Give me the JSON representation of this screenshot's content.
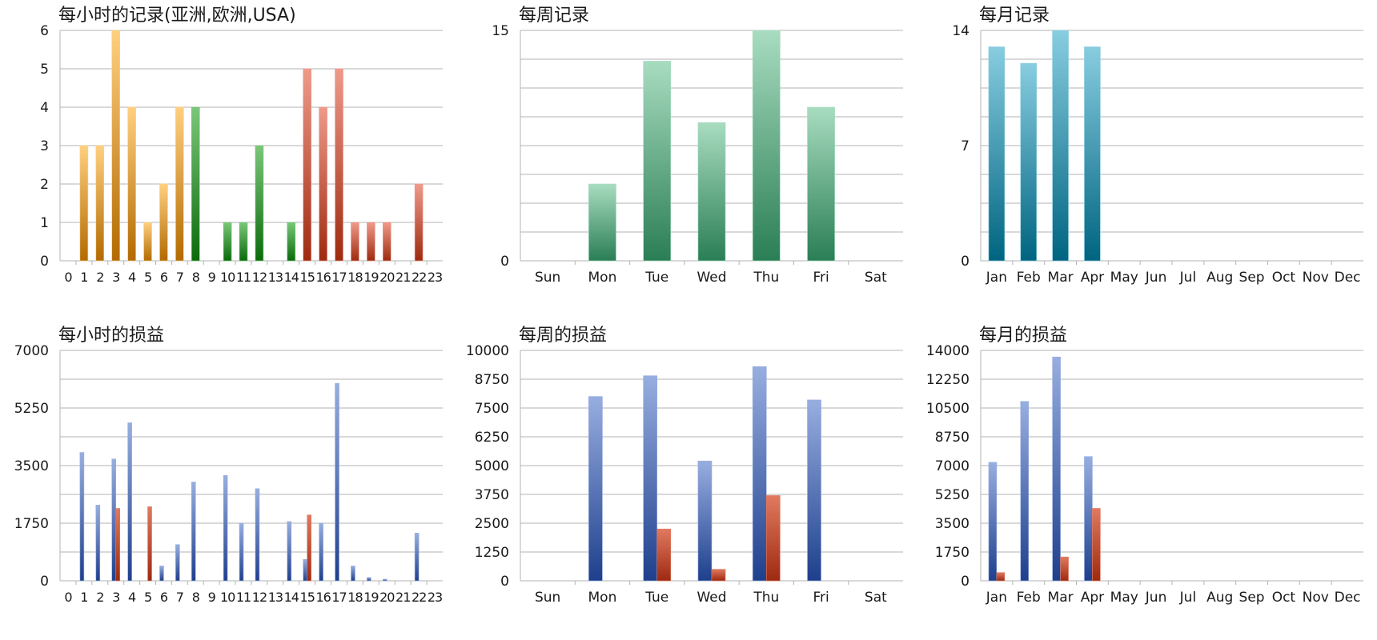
{
  "chart_data": [
    {
      "id": "hourly-records",
      "type": "bar",
      "title": "每小时的记录(亚洲,欧洲,USA)",
      "xlabel": "",
      "ylabel": "",
      "categories": [
        "0",
        "1",
        "2",
        "3",
        "4",
        "5",
        "6",
        "7",
        "8",
        "9",
        "10",
        "11",
        "12",
        "13",
        "14",
        "15",
        "16",
        "17",
        "18",
        "19",
        "20",
        "21",
        "22",
        "23"
      ],
      "ylim": [
        0,
        6
      ],
      "yticks": [
        0,
        1,
        2,
        3,
        4,
        5,
        6
      ],
      "grid": true,
      "stacked": true,
      "series": [
        {
          "color_top": "#ffd080",
          "color_bottom": "#b36a00",
          "values": [
            0,
            3,
            3,
            6,
            4,
            1,
            2,
            4,
            0,
            0,
            0,
            0,
            0,
            0,
            0,
            0,
            0,
            0,
            0,
            0,
            0,
            0,
            0,
            0
          ]
        },
        {
          "color_top": "#7ac77a",
          "color_bottom": "#0a6a0a",
          "values": [
            0,
            0,
            0,
            0,
            0,
            0,
            0,
            0,
            4,
            0,
            1,
            1,
            3,
            0,
            1,
            0,
            0,
            0,
            0,
            0,
            0,
            0,
            0,
            0
          ]
        },
        {
          "color_top": "#ef9a8a",
          "color_bottom": "#9e2a10",
          "values": [
            0,
            0,
            0,
            0,
            0,
            0,
            0,
            0,
            0,
            0,
            0,
            0,
            0,
            0,
            0,
            5,
            4,
            5,
            1,
            1,
            1,
            0,
            2,
            0
          ]
        }
      ]
    },
    {
      "id": "weekly-records",
      "type": "bar",
      "title": "每周记录",
      "xlabel": "",
      "ylabel": "",
      "categories": [
        "Sun",
        "Mon",
        "Tue",
        "Wed",
        "Thu",
        "Fri",
        "Sat"
      ],
      "ylim": [
        0,
        15
      ],
      "yticks": [
        0,
        15
      ],
      "gridlines": [
        1.875,
        3.75,
        5.625,
        7.5,
        9.375,
        11.25,
        13.125,
        15
      ],
      "grid": true,
      "series": [
        {
          "color_top": "#a8dcc0",
          "color_bottom": "#2a7e55",
          "values": [
            0,
            5,
            13,
            9,
            15,
            10,
            0
          ]
        }
      ]
    },
    {
      "id": "monthly-records",
      "type": "bar",
      "title": "每月记录",
      "xlabel": "",
      "ylabel": "",
      "categories": [
        "Jan",
        "Feb",
        "Mar",
        "Apr",
        "May",
        "Jun",
        "Jul",
        "Aug",
        "Sep",
        "Oct",
        "Nov",
        "Dec"
      ],
      "ylim": [
        0,
        14
      ],
      "yticks": [
        0,
        7,
        14
      ],
      "gridlines": [
        1.75,
        3.5,
        5.25,
        7,
        8.75,
        10.5,
        12.25,
        14
      ],
      "grid": true,
      "series": [
        {
          "color_top": "#88cde0",
          "color_bottom": "#006480",
          "values": [
            13,
            12,
            14,
            13,
            0,
            0,
            0,
            0,
            0,
            0,
            0,
            0
          ]
        }
      ]
    },
    {
      "id": "hourly-profit-loss",
      "type": "bar",
      "title": "每小时的损益",
      "xlabel": "",
      "ylabel": "",
      "categories": [
        "0",
        "1",
        "2",
        "3",
        "4",
        "5",
        "6",
        "7",
        "8",
        "9",
        "10",
        "11",
        "12",
        "13",
        "14",
        "15",
        "16",
        "17",
        "18",
        "19",
        "20",
        "21",
        "22",
        "23"
      ],
      "ylim": [
        0,
        7000
      ],
      "yticks": [
        0,
        1750,
        3500,
        5250,
        7000
      ],
      "gridlines": [
        875,
        1750,
        2625,
        3500,
        4375,
        5250,
        6125,
        7000
      ],
      "grid": true,
      "series": [
        {
          "color_top": "#98aee0",
          "color_bottom": "#1e3f8c",
          "values": [
            0,
            3900,
            2300,
            3700,
            4800,
            0,
            450,
            1100,
            3000,
            0,
            3200,
            1750,
            2800,
            0,
            1800,
            650,
            1750,
            6000,
            450,
            100,
            50,
            0,
            1450,
            0
          ]
        },
        {
          "color_top": "#e07a60",
          "color_bottom": "#9e2a10",
          "values": [
            0,
            0,
            0,
            2200,
            0,
            2250,
            0,
            0,
            0,
            0,
            0,
            0,
            0,
            0,
            0,
            2000,
            0,
            0,
            0,
            0,
            0,
            0,
            0,
            0
          ]
        }
      ]
    },
    {
      "id": "weekly-profit-loss",
      "type": "bar",
      "title": "每周的损益",
      "xlabel": "",
      "ylabel": "",
      "categories": [
        "Sun",
        "Mon",
        "Tue",
        "Wed",
        "Thu",
        "Fri",
        "Sat"
      ],
      "ylim": [
        0,
        10000
      ],
      "yticks": [
        0,
        1250,
        2500,
        3750,
        5000,
        6250,
        7500,
        8750,
        10000
      ],
      "grid": true,
      "series": [
        {
          "color_top": "#98aee0",
          "color_bottom": "#1e3f8c",
          "values": [
            0,
            8000,
            8900,
            5200,
            9300,
            7850,
            0
          ]
        },
        {
          "color_top": "#e07a60",
          "color_bottom": "#9e2a10",
          "values": [
            0,
            0,
            2250,
            500,
            3700,
            0,
            0
          ]
        }
      ]
    },
    {
      "id": "monthly-profit-loss",
      "type": "bar",
      "title": "每月的损益",
      "xlabel": "",
      "ylabel": "",
      "categories": [
        "Jan",
        "Feb",
        "Mar",
        "Apr",
        "May",
        "Jun",
        "Jul",
        "Aug",
        "Sep",
        "Oct",
        "Nov",
        "Dec"
      ],
      "ylim": [
        0,
        14000
      ],
      "yticks": [
        0,
        1750,
        3500,
        5250,
        7000,
        8750,
        10500,
        12250,
        14000
      ],
      "grid": true,
      "series": [
        {
          "color_top": "#98aee0",
          "color_bottom": "#1e3f8c",
          "values": [
            7200,
            10900,
            13600,
            7550,
            0,
            0,
            0,
            0,
            0,
            0,
            0,
            0
          ]
        },
        {
          "color_top": "#e07a60",
          "color_bottom": "#9e2a10",
          "values": [
            500,
            0,
            1450,
            4400,
            0,
            0,
            0,
            0,
            0,
            0,
            0,
            0
          ]
        }
      ]
    }
  ]
}
